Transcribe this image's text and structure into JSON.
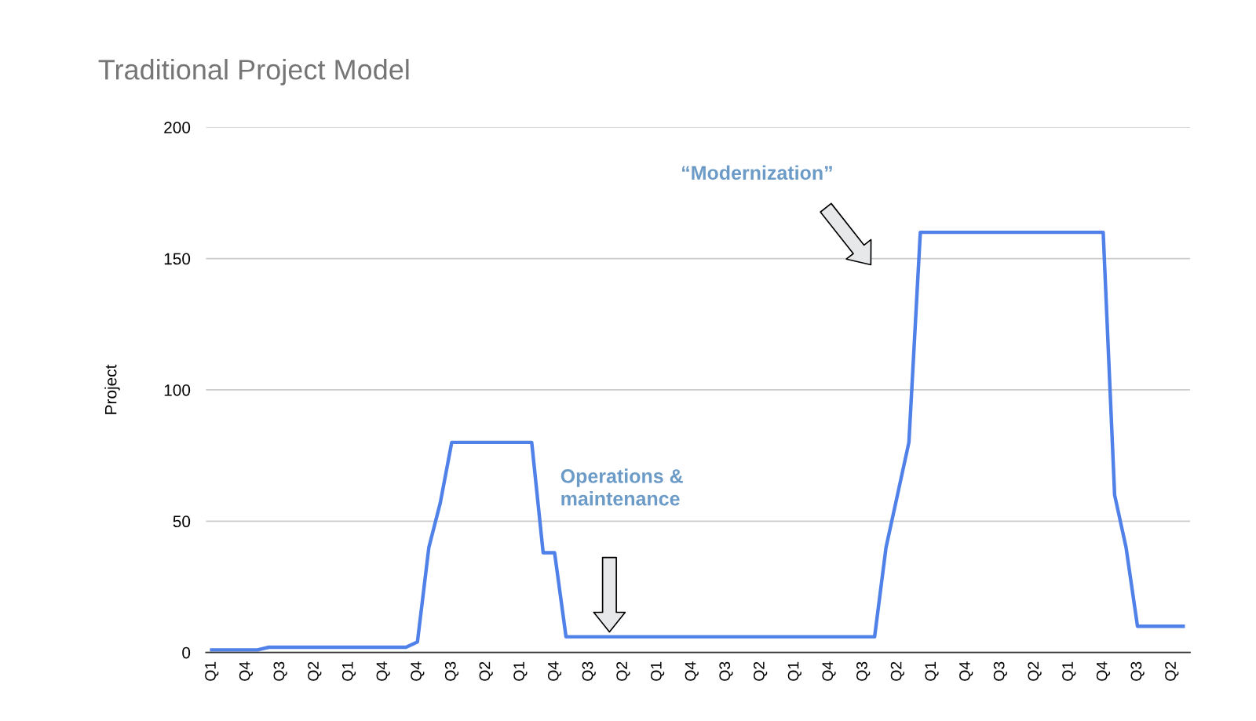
{
  "chart_data": {
    "type": "line",
    "title": "Traditional Project Model",
    "ylabel": "Project",
    "categories": [
      "Q1",
      null,
      null,
      "Q4",
      null,
      null,
      "Q3",
      null,
      null,
      "Q2",
      null,
      null,
      "Q1",
      null,
      null,
      "Q4",
      null,
      null,
      "Q4",
      null,
      null,
      "Q3",
      null,
      null,
      "Q2",
      null,
      null,
      "Q1",
      null,
      null,
      "Q4",
      null,
      null,
      "Q3",
      null,
      null,
      "Q2",
      null,
      null,
      "Q1",
      null,
      null,
      "Q4",
      null,
      null,
      "Q3",
      null,
      null,
      "Q2",
      null,
      null,
      "Q1",
      null,
      null,
      "Q4",
      null,
      null,
      "Q3",
      null,
      null,
      "Q2",
      null,
      null,
      "Q1",
      null,
      null,
      "Q4",
      null,
      null,
      "Q3",
      null,
      null,
      "Q2",
      null,
      null,
      "Q1",
      null,
      null,
      "Q4",
      null,
      null,
      "Q3",
      null,
      null,
      "Q2",
      null
    ],
    "series": [
      {
        "color": "#4f81e8",
        "values": [
          1,
          1,
          1,
          1,
          1,
          2,
          2,
          2,
          2,
          2,
          2,
          2,
          2,
          2,
          2,
          2,
          2,
          2,
          4,
          40,
          57,
          80,
          80,
          80,
          80,
          80,
          80,
          80,
          80,
          38,
          38,
          6,
          6,
          6,
          6,
          6,
          6,
          6,
          6,
          6,
          6,
          6,
          6,
          6,
          6,
          6,
          6,
          6,
          6,
          6,
          6,
          6,
          6,
          6,
          6,
          6,
          6,
          6,
          6,
          40,
          60,
          80,
          160,
          160,
          160,
          160,
          160,
          160,
          160,
          160,
          160,
          160,
          160,
          160,
          160,
          160,
          160,
          160,
          160,
          60,
          40,
          10,
          10,
          10,
          10,
          10
        ]
      }
    ],
    "ylim": [
      0,
      200
    ],
    "yticks": [
      0,
      50,
      100,
      150,
      200
    ],
    "grid": "y",
    "legend": false,
    "marker": "none",
    "line_style": "solid",
    "annotations": [
      "“Modernization”",
      "Operations &\nmaintenance"
    ]
  }
}
